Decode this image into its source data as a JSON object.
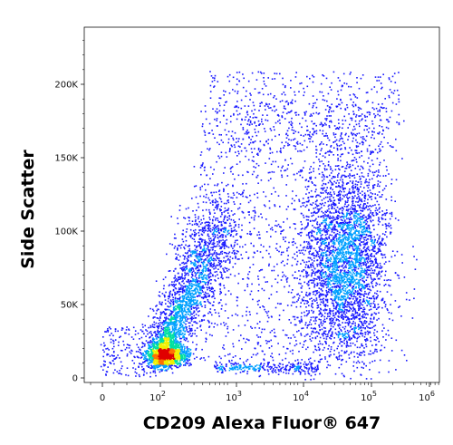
{
  "chart_data": {
    "type": "scatter",
    "subtype": "flow-cytometry density dot plot (pseudocolor)",
    "xlabel": "CD209 Alexa Fluor® 647",
    "ylabel": "Side Scatter",
    "x_scale": "biexponential (log above ~10^2)",
    "x_ticks": [
      {
        "value": "0",
        "label": "0"
      },
      {
        "value": "10^2",
        "label": "10",
        "sup": "2"
      },
      {
        "value": "10^3",
        "label": "10",
        "sup": "3"
      },
      {
        "value": "10^4",
        "label": "10",
        "sup": "4"
      },
      {
        "value": "10^5",
        "label": "10",
        "sup": "5"
      },
      {
        "value": "10^6",
        "label": "10",
        "sup": "6"
      }
    ],
    "y_ticks": [
      {
        "value": 0,
        "label": "0"
      },
      {
        "value": 50000,
        "label": "50K"
      },
      {
        "value": 100000,
        "label": "100K"
      },
      {
        "value": 150000,
        "label": "150K"
      },
      {
        "value": 200000,
        "label": "200K"
      }
    ],
    "ylim": [
      0,
      240000
    ],
    "grid": false,
    "density_colors": [
      "#1a1aff",
      "#00a0ff",
      "#00e0a0",
      "#f0f000",
      "#ff7000",
      "#e00000"
    ],
    "populations": [
      {
        "name": "",
        "x_log10_center": 2.2,
        "y_center": 18000,
        "note": "dense hotspot (red)"
      },
      {
        "name": "",
        "x_log10_center": 2.6,
        "y_center": 50000,
        "note": "diagonal comet extending upward"
      },
      {
        "name": "",
        "x_log10_center": 4.6,
        "y_center": 90000,
        "note": "broad positive cluster (cyan/green core)"
      },
      {
        "name": "",
        "x_log10_center": 3.4,
        "y_center": 15000,
        "note": "faint horizontal band"
      }
    ]
  }
}
